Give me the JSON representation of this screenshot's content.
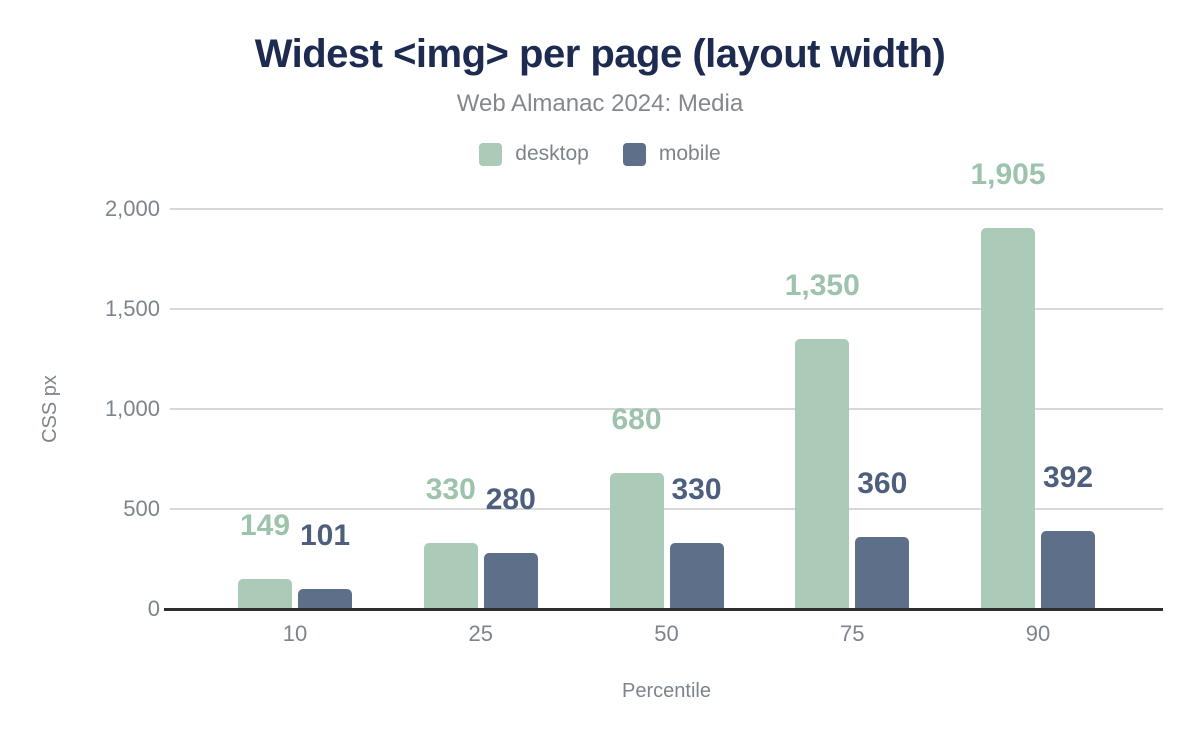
{
  "page": {
    "background": "#ffffff"
  },
  "colors": {
    "title": "#1c2b4f",
    "subtitle": "#84888d",
    "axis_text": "#7d848c",
    "gridline": "#d8d8d8",
    "baseline": "#2f2f2f"
  },
  "chart_data": {
    "type": "bar",
    "title": "Widest <img> per page (layout width)",
    "subtitle": "Web Almanac 2024: Media",
    "xlabel": "Percentile",
    "ylabel": "CSS px",
    "categories": [
      "10",
      "25",
      "50",
      "75",
      "90"
    ],
    "series": [
      {
        "name": "desktop",
        "color": "#abcab8",
        "label_color": "#9dc3ac",
        "values": [
          149,
          330,
          680,
          1350,
          1905
        ],
        "labels": [
          "149",
          "330",
          "680",
          "1,350",
          "1,905"
        ]
      },
      {
        "name": "mobile",
        "color": "#5e7089",
        "label_color": "#4e5f7e",
        "values": [
          101,
          280,
          330,
          360,
          392
        ],
        "labels": [
          "101",
          "280",
          "330",
          "360",
          "392"
        ]
      }
    ],
    "ylim": [
      0,
      2000
    ],
    "yticks": [
      {
        "v": 0,
        "label": "0"
      },
      {
        "v": 500,
        "label": "500"
      },
      {
        "v": 1000,
        "label": "1,000"
      },
      {
        "v": 1500,
        "label": "1,500"
      },
      {
        "v": 2000,
        "label": "2,000"
      }
    ],
    "grid": true,
    "legend_position": "top"
  }
}
